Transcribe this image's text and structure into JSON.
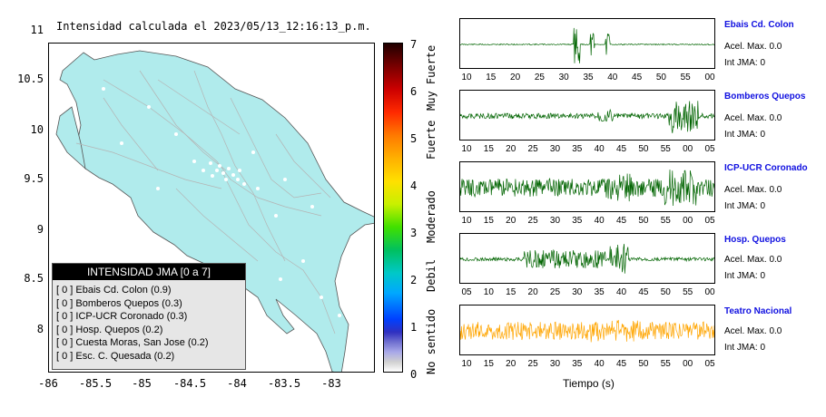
{
  "map": {
    "title": "Intensidad calculada el 2023/05/13_12:16:13_p.m.",
    "y_ticks": [
      "11",
      "10.5",
      "10",
      "9.5",
      "9",
      "8.5",
      "8"
    ],
    "x_ticks": [
      "-86",
      "-85.5",
      "-85",
      "-84.5",
      "-84",
      "-83.5",
      "-83"
    ],
    "land_color": "#b0ebec",
    "road_color": "#b4b4b4"
  },
  "colorbar": {
    "ticks": [
      "7",
      "6",
      "5",
      "4",
      "3",
      "2",
      "1",
      "0"
    ],
    "labels": [
      "Muy Fuerte",
      "Fuerte",
      "Moderado",
      "Debil",
      "No sentido"
    ]
  },
  "legend": {
    "title": "INTENSIDAD JMA [0 a 7]",
    "rows": [
      "[ 0 ]  Ebais Cd. Colon (0.9)",
      "[ 0 ]  Bomberos Quepos (0.3)",
      "[ 0 ]  ICP-UCR Coronado (0.3)",
      "[ 0 ]  Hosp. Quepos (0.2)",
      "[ 0 ]  Cuesta Moras, San Jose (0.2)",
      "[ 0 ]  Esc. C. Quesada (0.2)"
    ]
  },
  "stations": [
    {
      "name": "Ebais Cd. Colon",
      "acel": "Acel. Max. 0.0",
      "jma": "Int JMA: 0",
      "color": "#006400",
      "ticks": [
        "10",
        "15",
        "20",
        "25",
        "30",
        "35",
        "40",
        "45",
        "50",
        "55",
        "00"
      ]
    },
    {
      "name": "Bomberos Quepos",
      "acel": "Acel. Max. 0.0",
      "jma": "Int JMA: 0",
      "color": "#006400",
      "ticks": [
        "10",
        "15",
        "20",
        "25",
        "30",
        "35",
        "40",
        "45",
        "50",
        "55",
        "00",
        "05"
      ]
    },
    {
      "name": "ICP-UCR Coronado",
      "acel": "Acel. Max. 0.0",
      "jma": "Int JMA: 0",
      "color": "#006400",
      "ticks": [
        "10",
        "15",
        "20",
        "25",
        "30",
        "35",
        "40",
        "45",
        "50",
        "55",
        "00",
        "05"
      ]
    },
    {
      "name": "Hosp. Quepos",
      "acel": "Acel. Max. 0.0",
      "jma": "Int JMA: 0",
      "color": "#006400",
      "ticks": [
        "05",
        "10",
        "15",
        "20",
        "25",
        "30",
        "35",
        "40",
        "45",
        "50",
        "55",
        "00"
      ]
    },
    {
      "name": "Teatro Nacional",
      "acel": "Acel. Max. 0.0",
      "jma": "Int JMA: 0",
      "color": "#ffa500",
      "ticks": [
        "10",
        "15",
        "20",
        "25",
        "30",
        "35",
        "40",
        "45",
        "50",
        "55",
        "00",
        "05"
      ]
    }
  ],
  "xlabel": "Tiempo (s)"
}
